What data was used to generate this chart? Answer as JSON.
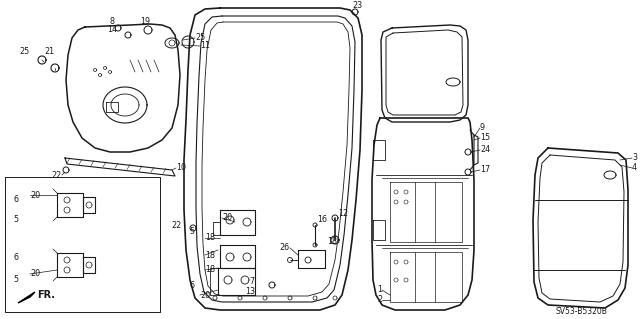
{
  "bg_color": "#ffffff",
  "diagram_code": "SV53-B5320B",
  "fig_width": 6.4,
  "fig_height": 3.19,
  "dpi": 100,
  "line_color": "#1a1a1a",
  "label_fontsize": 5.8
}
